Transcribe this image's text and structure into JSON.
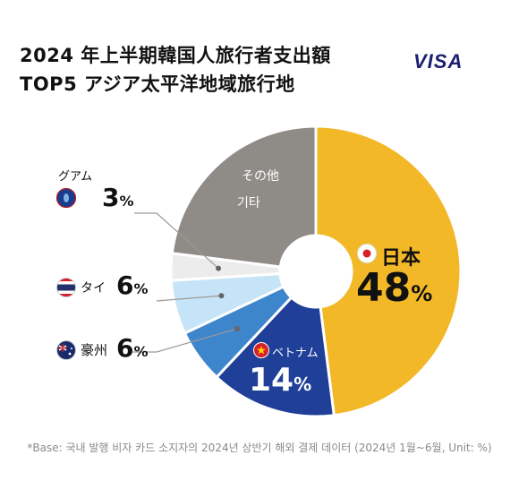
{
  "title": {
    "line1": "2024 年上半期韓国人旅行者支出額",
    "line2": "TOP5 アジア太平洋地域旅行地"
  },
  "brand": "VISA",
  "footnote": "*Base: 국내 발행 비자 카드 소지자의 2024년 상반기 해외 결제 데이터 (2024년 1월~6월, Unit: %)",
  "chart_data": {
    "type": "pie",
    "donut": true,
    "categories": [
      "日本",
      "ベトナム",
      "豪州",
      "タイ",
      "グアム",
      "その他"
    ],
    "values": [
      48,
      14,
      6,
      6,
      3,
      23
    ],
    "colors": [
      "#f2b827",
      "#1f3f98",
      "#3d86cc",
      "#c5e4f7",
      "#ececec",
      "#8f8b87"
    ],
    "labels": {
      "japan": {
        "name": "日本",
        "pct": "48",
        "unit": "%"
      },
      "vietnam": {
        "name": "ベトナム",
        "pct": "14",
        "unit": "%"
      },
      "aus": {
        "name": "豪州",
        "pct": "6",
        "unit": "%"
      },
      "thai": {
        "name": "タイ",
        "pct": "6",
        "unit": "%"
      },
      "guam": {
        "name": "グアム",
        "pct": "3",
        "unit": "%"
      },
      "other": {
        "name_jp": "その他",
        "name_kr": "기타"
      }
    }
  }
}
